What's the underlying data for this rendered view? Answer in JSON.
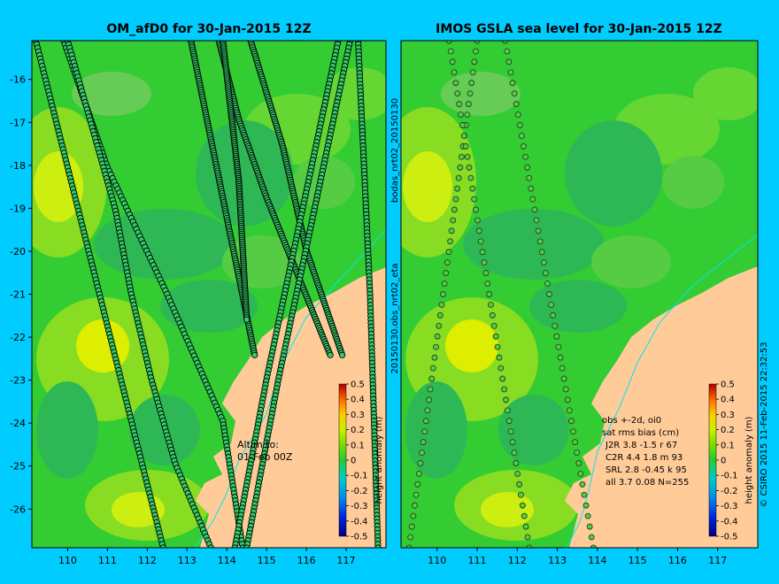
{
  "chart_data": [
    {
      "type": "heatmap",
      "title": "OM_afD0 for 30-Jan-2015 12Z",
      "x_ticks": [
        110,
        111,
        112,
        113,
        114,
        115,
        116,
        117
      ],
      "y_ticks": [
        -16,
        -17,
        -18,
        -19,
        -20,
        -21,
        -22,
        -23,
        -24,
        -25,
        -26
      ],
      "xlim": [
        109.1,
        118.0
      ],
      "ylim": [
        -26.9,
        -15.1
      ],
      "colorbar": {
        "label": "height anomaly (m)",
        "ticks": [
          "0.5",
          "0.4",
          "0.3",
          "0.2",
          "0.1",
          "0",
          "-0.1",
          "-0.2",
          "-0.3",
          "-0.4",
          "-0.5"
        ]
      },
      "annotation": [
        "Altim to:",
        "01-Feb 00Z"
      ],
      "side_label": "bodas_nrt02_20150130",
      "tracks": [
        {
          "x": [
            109.9,
            111.0,
            112.5,
            113.9,
            114.4
          ]
        },
        {
          "x": [
            109.2,
            110.0,
            110.8,
            111.6,
            112.4
          ]
        },
        {
          "x": [
            110.0,
            110.6,
            111.2,
            111.6,
            112.1,
            112.7,
            113.6
          ]
        },
        {
          "x": [
            113.1,
            113.9,
            114.7
          ]
        },
        {
          "x": [
            113.8,
            114.3,
            115.0,
            115.8,
            116.6
          ]
        },
        {
          "x": [
            114.6,
            115.4,
            116.0,
            116.9
          ]
        },
        {
          "x": [
            113.9,
            114.3,
            114.5
          ]
        },
        {
          "x": [
            117.3,
            117.6,
            117.8
          ]
        },
        {
          "x": [
            116.8,
            115.9,
            115.0,
            114.2
          ]
        },
        {
          "x": [
            117.1,
            116.2,
            115.3,
            114.5
          ]
        }
      ]
    },
    {
      "type": "heatmap",
      "title": "IMOS GSLA sea level  for 30-Jan-2015 12Z",
      "x_ticks": [
        110,
        111,
        112,
        113,
        114,
        115,
        116,
        117
      ],
      "y_ticks": [],
      "xlim": [
        109.1,
        118.0
      ],
      "ylim": [
        -26.9,
        -15.1
      ],
      "colorbar": {
        "label": "height anomaly (m)",
        "ticks": [
          "0.5",
          "0.4",
          "0.3",
          "0.2",
          "0.1",
          "0",
          "-0.1",
          "-0.2",
          "-0.3",
          "-0.4",
          "-0.5"
        ]
      },
      "stats_text": [
        "obs +-2d, oi0",
        "sat rms bias (cm)",
        "J2R    3.8 -1.5 r 67",
        "C2R    4.4 1.8 m 93",
        "SRL    2.8 -0.45 k 95",
        "all   3.7 0.08 N=255"
      ],
      "side_label": "20150130.obs_nrt02_eta",
      "credit": "© CSIRO 2015  11-Feb-2015 22:32:53"
    }
  ]
}
